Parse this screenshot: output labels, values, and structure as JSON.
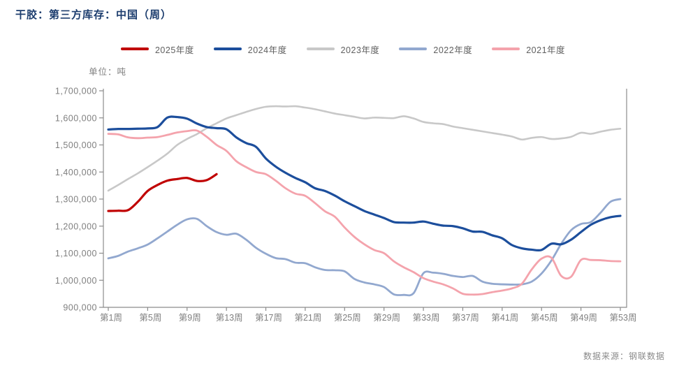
{
  "title": "干胶：第三方库存：中国（周）",
  "unit_label": "单位：吨",
  "source": "数据来源：钢联数据",
  "chart_data": {
    "type": "line",
    "title": "干胶：第三方库存：中国（周）",
    "ylabel": "单位：吨",
    "grid": false,
    "legend_position": "top-center",
    "x_axis": {
      "unit": "week",
      "range": [
        1,
        53
      ],
      "tick_weeks": [
        1,
        5,
        9,
        13,
        17,
        21,
        25,
        29,
        33,
        37,
        41,
        45,
        49,
        53
      ],
      "tick_labels": [
        "第1周",
        "第5周",
        "第9周",
        "第13周",
        "第17周",
        "第21周",
        "第25周",
        "第29周",
        "第33周",
        "第37周",
        "第41周",
        "第45周",
        "第49周",
        "第53周"
      ]
    },
    "y_axis": {
      "min": 900000,
      "max": 1700000,
      "step": 100000,
      "tick_labels": [
        "1,700,000",
        "1,600,000",
        "1,500,000",
        "1,400,000",
        "1,300,000",
        "1,200,000",
        "1,100,000",
        "1,000,000",
        "900,000"
      ]
    },
    "series": [
      {
        "name": "2025年度",
        "color": "#c00000",
        "stroke_width": 3.2,
        "start_week": 1,
        "values": [
          1256000,
          1257000,
          1259000,
          1290000,
          1330000,
          1352000,
          1368000,
          1374000,
          1378000,
          1367000,
          1370000,
          1392000
        ]
      },
      {
        "name": "2024年度",
        "color": "#1c4e9c",
        "stroke_width": 3.2,
        "start_week": 1,
        "values": [
          1557000,
          1559000,
          1559000,
          1560000,
          1561000,
          1566000,
          1601000,
          1603000,
          1597000,
          1579000,
          1566000,
          1562000,
          1558000,
          1528000,
          1507000,
          1493000,
          1450000,
          1420000,
          1397000,
          1378000,
          1362000,
          1340000,
          1330000,
          1313000,
          1292000,
          1274000,
          1256000,
          1243000,
          1230000,
          1215000,
          1213000,
          1213000,
          1217000,
          1209000,
          1202000,
          1200000,
          1192000,
          1180000,
          1179000,
          1166000,
          1155000,
          1130000,
          1118000,
          1113000,
          1112000,
          1135000,
          1133000,
          1150000,
          1178000,
          1205000,
          1222000,
          1233000,
          1238000
        ]
      },
      {
        "name": "2023年度",
        "color": "#c8c8c8",
        "stroke_width": 2.6,
        "start_week": 1,
        "values": [
          1331000,
          1352000,
          1374000,
          1395000,
          1418000,
          1442000,
          1468000,
          1500000,
          1522000,
          1540000,
          1562000,
          1580000,
          1598000,
          1610000,
          1622000,
          1633000,
          1641000,
          1643000,
          1642000,
          1643000,
          1638000,
          1632000,
          1624000,
          1616000,
          1610000,
          1604000,
          1598000,
          1601000,
          1600000,
          1599000,
          1606000,
          1598000,
          1585000,
          1580000,
          1577000,
          1568000,
          1562000,
          1556000,
          1550000,
          1544000,
          1538000,
          1531000,
          1520000,
          1526000,
          1529000,
          1522000,
          1524000,
          1530000,
          1545000,
          1541000,
          1549000,
          1556000,
          1560000
        ]
      },
      {
        "name": "2022年度",
        "color": "#92a8cf",
        "stroke_width": 2.8,
        "start_week": 1,
        "values": [
          1081000,
          1090000,
          1106000,
          1118000,
          1132000,
          1155000,
          1180000,
          1205000,
          1225000,
          1227000,
          1200000,
          1178000,
          1168000,
          1172000,
          1150000,
          1120000,
          1098000,
          1082000,
          1078000,
          1065000,
          1063000,
          1048000,
          1038000,
          1037000,
          1033000,
          1005000,
          992000,
          985000,
          975000,
          948000,
          946000,
          952000,
          1026000,
          1028000,
          1024000,
          1016000,
          1012000,
          1016000,
          995000,
          987000,
          985000,
          984000,
          985000,
          995000,
          1025000,
          1073000,
          1135000,
          1185000,
          1208000,
          1215000,
          1250000,
          1290000,
          1300000
        ]
      },
      {
        "name": "2021年度",
        "color": "#f4a3ac",
        "stroke_width": 2.8,
        "start_week": 1,
        "values": [
          1541000,
          1539000,
          1528000,
          1525000,
          1527000,
          1529000,
          1537000,
          1546000,
          1551000,
          1553000,
          1530000,
          1500000,
          1478000,
          1440000,
          1418000,
          1400000,
          1392000,
          1368000,
          1340000,
          1320000,
          1312000,
          1285000,
          1255000,
          1235000,
          1195000,
          1160000,
          1133000,
          1112000,
          1100000,
          1070000,
          1048000,
          1030000,
          1008000,
          995000,
          985000,
          970000,
          950000,
          947000,
          949000,
          956000,
          962000,
          970000,
          987000,
          1040000,
          1080000,
          1083000,
          1016000,
          1013000,
          1075000,
          1075000,
          1074000,
          1071000,
          1070000
        ]
      }
    ]
  },
  "style": {
    "axis_color": "#8c8c8c",
    "tick_color": "#8c8c8c",
    "title_color": "#1c3d6e",
    "label_color": "#7f7f7f"
  }
}
